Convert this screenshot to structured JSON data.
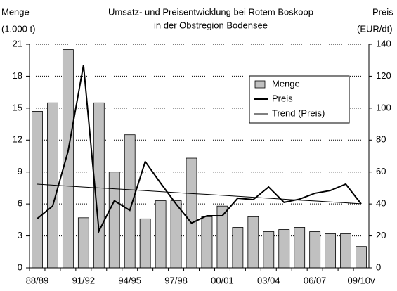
{
  "chart_data": {
    "type": "bar-line",
    "title": [
      "Umsatz- und Preisentwicklung bei Rotem Boskoop",
      "in der Obstregion Bodensee"
    ],
    "y_label": [
      "Menge",
      "(1.000 t)"
    ],
    "y2_label": [
      "Preis",
      "(EUR/dt)"
    ],
    "categories": [
      "88/89",
      null,
      null,
      "91/92",
      null,
      null,
      "94/95",
      null,
      null,
      "97/98",
      null,
      null,
      "00/01",
      null,
      null,
      "03/04",
      null,
      null,
      "06/07",
      null,
      null,
      "09/10v"
    ],
    "series": [
      {
        "name": "Menge",
        "type": "bar",
        "axis": "y",
        "color": "#c0c0c0",
        "values": [
          14.7,
          15.5,
          20.5,
          4.7,
          15.5,
          9.0,
          12.5,
          4.6,
          6.3,
          6.3,
          10.3,
          4.8,
          5.8,
          3.8,
          4.8,
          3.4,
          3.6,
          3.8,
          3.4,
          3.2,
          3.2,
          2.0
        ]
      },
      {
        "name": "Preis",
        "type": "line",
        "axis": "y2",
        "color": "#000000",
        "line_width": 2,
        "values": [
          30.8,
          38.7,
          73,
          127,
          23,
          42,
          36,
          66.5,
          53,
          40,
          28,
          32.6,
          32.6,
          43.6,
          42.7,
          50.6,
          41,
          43,
          46.7,
          48.4,
          52.4,
          40
        ]
      },
      {
        "name": "Trend (Preis)",
        "type": "line",
        "axis": "y2",
        "color": "#000000",
        "line_width": 1,
        "values": [
          52.4,
          51.8,
          51.2,
          50.6,
          50.0,
          49.5,
          48.9,
          48.3,
          47.7,
          47.1,
          46.5,
          46.0,
          45.4,
          44.8,
          44.2,
          43.6,
          43.0,
          42.4,
          41.9,
          41.3,
          40.7,
          40.1
        ]
      }
    ],
    "ylim": [
      0,
      21
    ],
    "yticks": [
      0,
      3,
      6,
      9,
      12,
      15,
      18,
      21
    ],
    "y2lim": [
      0,
      140
    ],
    "y2ticks": [
      0,
      20,
      40,
      60,
      80,
      100,
      120,
      140
    ],
    "grid": true,
    "legend": "upper right"
  }
}
